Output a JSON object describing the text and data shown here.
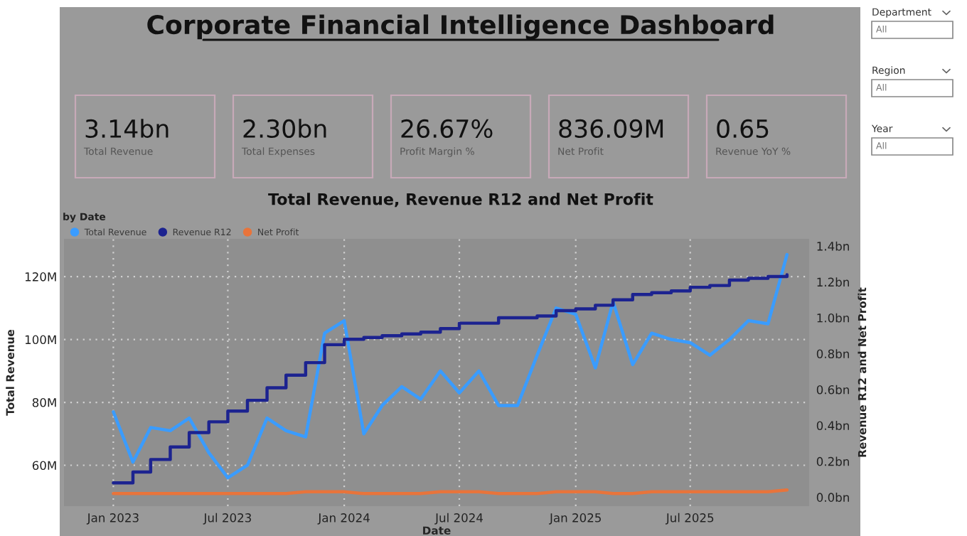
{
  "chart_data": [
    {
      "type": "other",
      "title": "Corporate Financial Intelligence Dashboard",
      "annotations": [
        "3.14bn",
        "Total Revenue",
        "2.30bn",
        "Total Expenses",
        "26.67%",
        "Profit Margin %",
        "836.09M",
        "Net Profit",
        "0.65",
        "Revenue YoY %",
        "Department",
        "All",
        "Region",
        "All",
        "Year",
        "All"
      ]
    },
    {
      "type": "line",
      "title": "Total Revenue, Revenue R12 and Net Profit",
      "subtitle": "by Date",
      "xlabel": "Date",
      "ylabel": "Total Revenue",
      "y2label": "Revenue R12 and Net Profit",
      "x": [
        "2023-01",
        "2023-02",
        "2023-03",
        "2023-04",
        "2023-05",
        "2023-06",
        "2023-07",
        "2023-08",
        "2023-09",
        "2023-10",
        "2023-11",
        "2023-12",
        "2024-01",
        "2024-02",
        "2024-03",
        "2024-04",
        "2024-05",
        "2024-06",
        "2024-07",
        "2024-08",
        "2024-09",
        "2024-10",
        "2024-11",
        "2024-12",
        "2025-01",
        "2025-02",
        "2025-03",
        "2025-04",
        "2025-05",
        "2025-06",
        "2025-07",
        "2025-08",
        "2025-09",
        "2025-10",
        "2025-11",
        "2025-12"
      ],
      "series": [
        {
          "name": "Total Revenue",
          "color": "#3a9cff",
          "values": [
            77,
            61,
            72,
            71,
            75,
            64,
            56,
            60,
            75,
            71,
            69,
            102,
            106,
            70,
            79,
            85,
            81,
            90,
            83,
            90,
            79,
            79,
            95,
            110,
            108,
            91,
            112,
            92,
            102,
            100,
            99,
            95,
            100,
            106,
            105,
            127
          ]
        },
        {
          "name": "Revenue R12",
          "color": "#1c2390",
          "type": "step",
          "axis": "y2",
          "values": [
            0.08,
            0.14,
            0.21,
            0.28,
            0.36,
            0.42,
            0.48,
            0.54,
            0.61,
            0.68,
            0.75,
            0.85,
            0.88,
            0.89,
            0.9,
            0.91,
            0.92,
            0.94,
            0.97,
            0.97,
            1.0,
            1.0,
            1.01,
            1.04,
            1.05,
            1.07,
            1.1,
            1.13,
            1.14,
            1.15,
            1.17,
            1.18,
            1.21,
            1.22,
            1.23,
            1.24
          ]
        },
        {
          "name": "Net Profit",
          "color": "#e8743b",
          "axis": "y2",
          "values": [
            0.02,
            0.02,
            0.02,
            0.02,
            0.02,
            0.02,
            0.02,
            0.02,
            0.02,
            0.02,
            0.03,
            0.03,
            0.03,
            0.02,
            0.02,
            0.02,
            0.02,
            0.03,
            0.03,
            0.03,
            0.02,
            0.02,
            0.02,
            0.03,
            0.03,
            0.03,
            0.02,
            0.02,
            0.03,
            0.03,
            0.03,
            0.03,
            0.03,
            0.03,
            0.03,
            0.04
          ]
        }
      ],
      "xlim": [
        "2022-10-15",
        "2026-01-05"
      ],
      "xticks": [
        {
          "value": "2023-01",
          "label": "Jan 2023"
        },
        {
          "value": "2023-07",
          "label": "Jul 2023"
        },
        {
          "value": "2024-01",
          "label": "Jan 2024"
        },
        {
          "value": "2024-07",
          "label": "Jul 2024"
        },
        {
          "value": "2025-01",
          "label": "Jan 2025"
        },
        {
          "value": "2025-07",
          "label": "Jul 2025"
        }
      ],
      "ylim": [
        47,
        132
      ],
      "yticks": [
        {
          "value": 60,
          "label": "60M"
        },
        {
          "value": 80,
          "label": "80M"
        },
        {
          "value": 100,
          "label": "100M"
        },
        {
          "value": 120,
          "label": "120M"
        }
      ],
      "y2lim": [
        -0.05,
        1.44
      ],
      "y2ticks": [
        {
          "value": 0,
          "label": "0.0bn"
        },
        {
          "value": 0.2,
          "label": "0.2bn"
        },
        {
          "value": 0.4,
          "label": "0.4bn"
        },
        {
          "value": 0.6,
          "label": "0.6bn"
        },
        {
          "value": 0.8,
          "label": "0.8bn"
        },
        {
          "value": 1.0,
          "label": "1.0bn"
        },
        {
          "value": 1.2,
          "label": "1.2bn"
        },
        {
          "value": 1.4,
          "label": "1.4bn"
        }
      ],
      "grid": true,
      "legend": "top left",
      "line_style": "solid",
      "marker": "none"
    }
  ]
}
